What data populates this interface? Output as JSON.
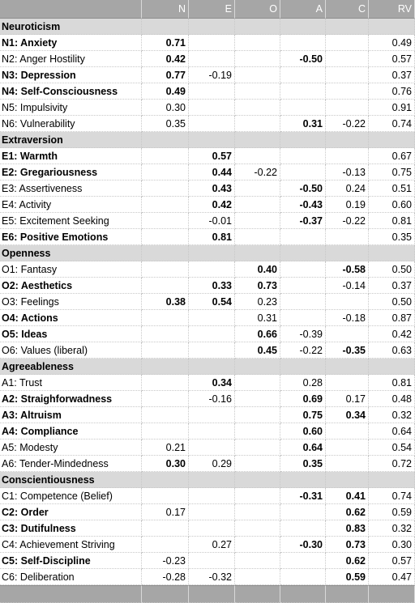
{
  "table": {
    "columns": [
      "N",
      "E",
      "O",
      "A",
      "C",
      "RV"
    ],
    "groups": [
      {
        "name": "Neuroticism",
        "rows": [
          {
            "label": "N1: Anxiety",
            "label_bold": true,
            "cells": [
              "0.71",
              null,
              null,
              null,
              null,
              "0.49"
            ],
            "bold": [
              0
            ]
          },
          {
            "label": "N2: Anger Hostility",
            "cells": [
              "0.42",
              null,
              null,
              "-0.50",
              null,
              "0.57"
            ],
            "bold": [
              0,
              3
            ]
          },
          {
            "label": "N3: Depression",
            "label_bold": true,
            "cells": [
              "0.77",
              "-0.19",
              null,
              null,
              null,
              "0.37"
            ],
            "bold": [
              0
            ]
          },
          {
            "label": "N4: Self-Consciousness",
            "label_bold": true,
            "cells": [
              "0.49",
              null,
              null,
              null,
              null,
              "0.76"
            ],
            "bold": [
              0
            ]
          },
          {
            "label": "N5: Impulsivity",
            "cells": [
              "0.30",
              null,
              null,
              null,
              null,
              "0.91"
            ]
          },
          {
            "label": "N6: Vulnerability",
            "cells": [
              "0.35",
              null,
              null,
              "0.31",
              "-0.22",
              "0.74"
            ],
            "bold": [
              3
            ]
          }
        ]
      },
      {
        "name": "Extraversion",
        "rows": [
          {
            "label": "E1: Warmth",
            "label_bold": true,
            "cells": [
              null,
              "0.57",
              null,
              null,
              null,
              "0.67"
            ],
            "bold": [
              1
            ]
          },
          {
            "label": "E2: Gregariousness",
            "label_bold": true,
            "cells": [
              null,
              "0.44",
              "-0.22",
              null,
              "-0.13",
              "0.75"
            ],
            "bold": [
              1
            ]
          },
          {
            "label": "E3: Assertiveness",
            "cells": [
              null,
              "0.43",
              null,
              "-0.50",
              "0.24",
              "0.51"
            ],
            "bold": [
              1,
              3
            ]
          },
          {
            "label": "E4: Activity",
            "cells": [
              null,
              "0.42",
              null,
              "-0.43",
              "0.19",
              "0.60"
            ],
            "bold": [
              1,
              3
            ]
          },
          {
            "label": "E5: Excitement Seeking",
            "cells": [
              null,
              "-0.01",
              null,
              "-0.37",
              "-0.22",
              "0.81"
            ],
            "bold": [
              3
            ]
          },
          {
            "label": "E6: Positive Emotions",
            "label_bold": true,
            "cells": [
              null,
              "0.81",
              null,
              null,
              null,
              "0.35"
            ],
            "bold": [
              1
            ]
          }
        ]
      },
      {
        "name": "Openness",
        "rows": [
          {
            "label": "O1: Fantasy",
            "cells": [
              null,
              null,
              "0.40",
              null,
              "-0.58",
              "0.50"
            ],
            "bold": [
              2,
              4
            ]
          },
          {
            "label": "O2: Aesthetics",
            "label_bold": true,
            "cells": [
              null,
              "0.33",
              "0.73",
              null,
              "-0.14",
              "0.37"
            ],
            "bold": [
              1,
              2
            ]
          },
          {
            "label": "O3: Feelings",
            "cells": [
              "0.38",
              "0.54",
              "0.23",
              null,
              null,
              "0.50"
            ],
            "bold": [
              0,
              1
            ]
          },
          {
            "label": "O4: Actions",
            "label_bold": true,
            "cells": [
              null,
              null,
              "0.31",
              null,
              "-0.18",
              "0.87"
            ]
          },
          {
            "label": "O5: Ideas",
            "label_bold": true,
            "cells": [
              null,
              null,
              "0.66",
              "-0.39",
              null,
              "0.42"
            ],
            "bold": [
              2
            ]
          },
          {
            "label": "O6: Values (liberal)",
            "cells": [
              null,
              null,
              "0.45",
              "-0.22",
              "-0.35",
              "0.63"
            ],
            "bold": [
              2,
              4
            ]
          }
        ]
      },
      {
        "name": "Agreeableness",
        "rows": [
          {
            "label": "A1: Trust",
            "cells": [
              null,
              "0.34",
              null,
              "0.28",
              null,
              "0.81"
            ],
            "bold": [
              1
            ]
          },
          {
            "label": "A2: Straighforwadness",
            "label_bold": true,
            "cells": [
              null,
              "-0.16",
              null,
              "0.69",
              "0.17",
              "0.48"
            ],
            "bold": [
              3
            ]
          },
          {
            "label": "A3: Altruism",
            "label_bold": true,
            "cells": [
              null,
              null,
              null,
              "0.75",
              "0.34",
              "0.32"
            ],
            "bold": [
              3,
              4
            ]
          },
          {
            "label": "A4: Compliance",
            "label_bold": true,
            "cells": [
              null,
              null,
              null,
              "0.60",
              null,
              "0.64"
            ],
            "bold": [
              3
            ]
          },
          {
            "label": "A5: Modesty",
            "cells": [
              "0.21",
              null,
              null,
              "0.64",
              null,
              "0.54"
            ],
            "bold": [
              3
            ]
          },
          {
            "label": "A6: Tender-Mindedness",
            "cells": [
              "0.30",
              "0.29",
              null,
              "0.35",
              null,
              "0.72"
            ],
            "bold": [
              0,
              3
            ]
          }
        ]
      },
      {
        "name": "Conscientiousness",
        "rows": [
          {
            "label": "C1: Competence (Belief)",
            "cells": [
              null,
              null,
              null,
              "-0.31",
              "0.41",
              "0.74"
            ],
            "bold": [
              3,
              4
            ]
          },
          {
            "label": "C2: Order",
            "label_bold": true,
            "cells": [
              "0.17",
              null,
              null,
              null,
              "0.62",
              "0.59"
            ],
            "bold": [
              4
            ]
          },
          {
            "label": "C3: Dutifulness",
            "label_bold": true,
            "cells": [
              null,
              null,
              null,
              null,
              "0.83",
              "0.32"
            ],
            "bold": [
              4
            ]
          },
          {
            "label": "C4: Achievement Striving",
            "cells": [
              null,
              "0.27",
              null,
              "-0.30",
              "0.73",
              "0.30"
            ],
            "bold": [
              3,
              4
            ]
          },
          {
            "label": "C5: Self-Discipline",
            "label_bold": true,
            "cells": [
              "-0.23",
              null,
              null,
              null,
              "0.62",
              "0.57"
            ],
            "bold": [
              4
            ]
          },
          {
            "label": "C6: Deliberation",
            "cells": [
              "-0.28",
              "-0.32",
              null,
              null,
              "0.59",
              "0.47"
            ],
            "bold": [
              4
            ]
          }
        ]
      }
    ]
  }
}
